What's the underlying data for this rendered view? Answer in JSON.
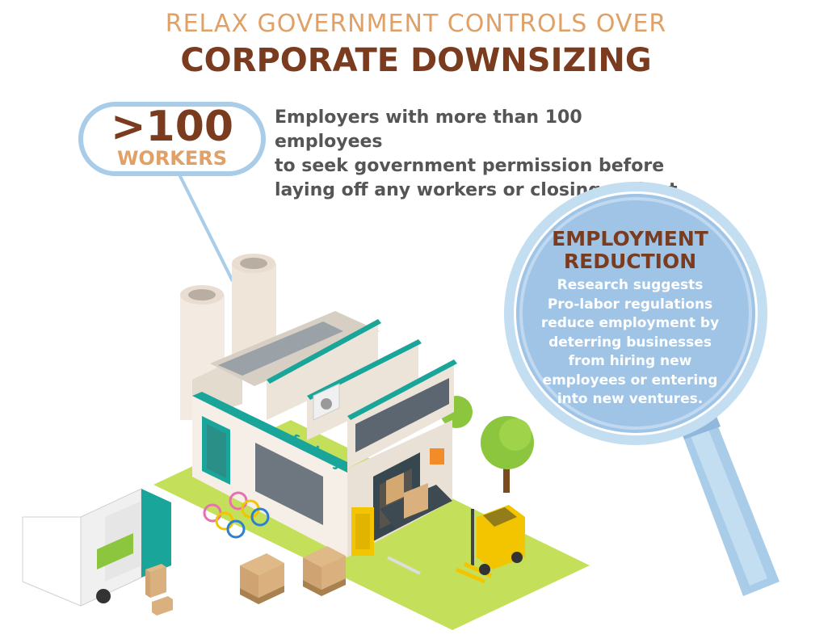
{
  "title": {
    "line1": "RELAX GOVERNMENT CONTROLS OVER",
    "line2": "CORPORATE DOWNSIZING"
  },
  "bubble": {
    "number": ">100",
    "unit": "WORKERS"
  },
  "description": [
    "Employers with more than 100 employees",
    "to seek government permission before",
    "laying off any workers or closing a plant."
  ],
  "lens": {
    "title_lines": [
      "EMPLOYMENT",
      "REDUCTION"
    ],
    "body_lines": [
      "Research suggests",
      "Pro-labor regulations",
      "reduce employment by",
      "deterring businesses",
      "from hiring new",
      "employees or entering",
      "into new ventures."
    ]
  },
  "factory_sign": "factory",
  "colors": {
    "title_light": "#e0a066",
    "title_dark": "#7a3b1e",
    "lens_blue": "#a9cce8",
    "teal": "#1aa59a",
    "grass": "#c4e05a"
  }
}
